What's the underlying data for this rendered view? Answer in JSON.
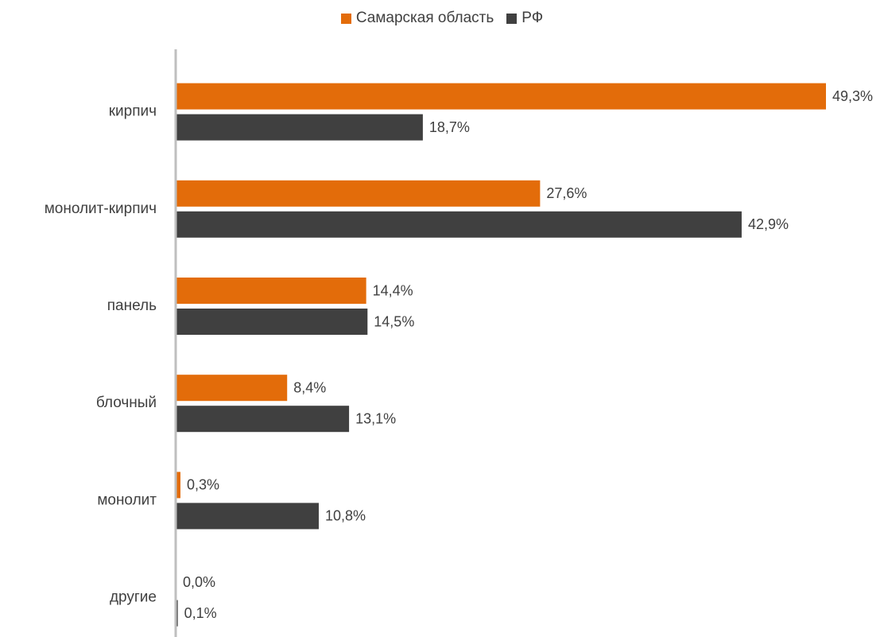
{
  "chart_data": {
    "type": "bar",
    "orientation": "horizontal",
    "categories": [
      "кирпич",
      "монолит-кирпич",
      "панель",
      "блочный",
      "монолит",
      "другие"
    ],
    "series": [
      {
        "name": "Самарская область",
        "color": "#E36C0A",
        "values": [
          49.3,
          27.6,
          14.4,
          8.4,
          0.3,
          0.0
        ],
        "labels": [
          "49,3%",
          "27,6%",
          "14,4%",
          "8,4%",
          "0,3%",
          "0,0%"
        ]
      },
      {
        "name": "РФ",
        "color": "#404040",
        "values": [
          18.7,
          42.9,
          14.5,
          13.1,
          10.8,
          0.1
        ],
        "labels": [
          "18,7%",
          "42,9%",
          "14,5%",
          "13,1%",
          "10,8%",
          "0,1%"
        ]
      }
    ],
    "xlim": [
      0,
      50
    ],
    "grid": false,
    "legend_position": "top"
  }
}
